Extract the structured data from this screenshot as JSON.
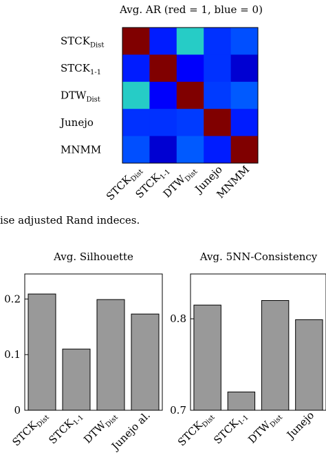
{
  "chart_data": [
    {
      "type": "heatmap",
      "title": "Avg. AR (red = 1, blue = 0)",
      "rows": [
        {
          "base": "STCK",
          "sub": "Dist"
        },
        {
          "base": "STCK",
          "sub": "1-1"
        },
        {
          "base": "DTW",
          "sub": "Dist"
        },
        {
          "base": "Junejo",
          "sub": ""
        },
        {
          "base": "MNMM",
          "sub": ""
        }
      ],
      "columns": [
        {
          "base": "STCK",
          "sub": "Dist"
        },
        {
          "base": "STCK",
          "sub": "1-1"
        },
        {
          "base": "DTW",
          "sub": "Dist"
        },
        {
          "base": "Junejo",
          "sub": ""
        },
        {
          "base": "MNMM",
          "sub": ""
        }
      ],
      "values": [
        [
          1.0,
          0.18,
          0.45,
          0.22,
          0.28
        ],
        [
          0.18,
          1.0,
          0.12,
          0.22,
          0.05
        ],
        [
          0.45,
          0.12,
          1.0,
          0.24,
          0.3
        ],
        [
          0.22,
          0.22,
          0.24,
          1.0,
          0.18
        ],
        [
          0.28,
          0.05,
          0.3,
          0.18,
          1.0
        ]
      ],
      "color_scale": {
        "min": 0,
        "max": 1,
        "low_color": "#0000b4",
        "high_color": "#800000"
      }
    },
    {
      "type": "bar",
      "title": "Avg. Silhouette",
      "categories": [
        {
          "base": "STCK",
          "sub": "Dist"
        },
        {
          "base": "STCK",
          "sub": "1-1"
        },
        {
          "base": "DTW",
          "sub": "Dist"
        },
        {
          "base": "Junejo al.",
          "sub": ""
        }
      ],
      "values": [
        0.209,
        0.11,
        0.199,
        0.173
      ],
      "ylim": [
        0,
        0.245
      ],
      "yticks": [
        "0",
        "0.1",
        "0.2"
      ],
      "ytick_values": [
        0,
        0.1,
        0.2
      ],
      "bar_color": "#999999"
    },
    {
      "type": "bar",
      "title": "Avg. 5NN-Consistency",
      "categories": [
        {
          "base": "STCK",
          "sub": "Dist"
        },
        {
          "base": "STCK",
          "sub": "1-1"
        },
        {
          "base": "DTW",
          "sub": "Dist"
        },
        {
          "base": "Junejo",
          "sub": ""
        }
      ],
      "values": [
        0.815,
        0.72,
        0.82,
        0.799
      ],
      "ylim": [
        0.7,
        0.849
      ],
      "yticks": [
        "0.7",
        "0.8"
      ],
      "ytick_values": [
        0.7,
        0.8
      ],
      "bar_color": "#999999"
    }
  ],
  "caption": "ise adjusted Rand indeces."
}
